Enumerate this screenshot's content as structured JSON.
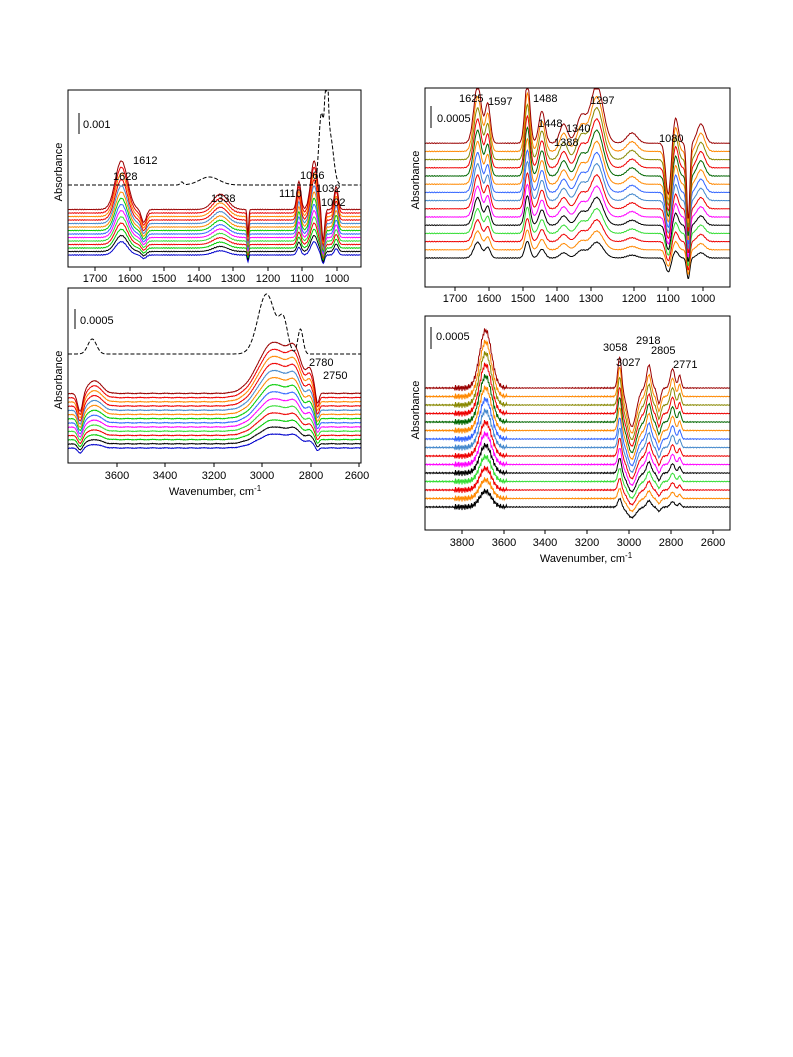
{
  "colors": {
    "black": "#000000",
    "blue": "#0000cc",
    "green": "#00cc00",
    "red": "#ee0000",
    "orange": "#ff8800",
    "magenta": "#ff00ff",
    "royal": "#3366ff",
    "lime": "#33dd33",
    "darkgreen": "#006600",
    "darkred": "#990000",
    "olive": "#888800",
    "steel": "#4488cc"
  },
  "chart_data": [
    {
      "type": "line",
      "panel": "top-left",
      "ylabel": "Absorbance",
      "xlim": [
        1780,
        930
      ],
      "x_reversed": true,
      "ticks": [
        1700,
        1600,
        1500,
        1400,
        1300,
        1200,
        1100,
        1000
      ],
      "tick_labels": [
        "1700",
        "1600",
        "1500",
        "1400",
        "1300",
        "1200",
        "1100",
        "1000"
      ],
      "scale_bar": "0.001",
      "annotations": [
        "1612",
        "1628",
        "1338",
        "1110",
        "1066",
        "1032",
        "1002"
      ],
      "dashed_reference": true,
      "series_count": 14
    },
    {
      "type": "line",
      "panel": "bottom-left",
      "xlabel": "Wavenumber, cm",
      "xlabel_sup": "-1",
      "ylabel": "Absorbance",
      "xlim": [
        3790,
        2580
      ],
      "x_reversed": true,
      "ticks": [
        3600,
        3400,
        3200,
        3000,
        2800,
        2600
      ],
      "tick_labels": [
        "3600",
        "3400",
        "3200",
        "3000",
        "2800",
        "2600"
      ],
      "scale_bar": "0.0005",
      "annotations": [
        "2780",
        "2750"
      ],
      "dashed_reference": true,
      "series_count": 14
    },
    {
      "type": "line",
      "panel": "top-right",
      "ylabel": "Absorbance",
      "xlim": [
        1770,
        930
      ],
      "x_reversed": true,
      "ticks": [
        1700,
        1600,
        1500,
        1400,
        1300,
        1200,
        1100,
        1000
      ],
      "tick_labels": [
        "1700",
        "1600",
        "1500",
        "1400",
        "1300",
        "1200",
        "1100",
        "1000"
      ],
      "scale_bar": "0.0005",
      "annotations": [
        "1625",
        "1597",
        "1488",
        "1448",
        "1340",
        "1388",
        "1297",
        "1080"
      ],
      "dashed_reference": false,
      "series_count": 15
    },
    {
      "type": "line",
      "panel": "bottom-right",
      "xlabel": "Wavenumber, cm",
      "xlabel_sup": "-1",
      "ylabel": "Absorbance",
      "xlim": [
        3990,
        2530
      ],
      "x_reversed": true,
      "ticks": [
        3800,
        3600,
        3400,
        3200,
        3000,
        2800,
        2600
      ],
      "tick_labels": [
        "3800",
        "3600",
        "3400",
        "3200",
        "3000",
        "2800",
        "2600"
      ],
      "scale_bar": "0.0005",
      "annotations": [
        "3058",
        "2918",
        "3027",
        "2805",
        "2771"
      ],
      "dashed_reference": false,
      "series_count": 15
    }
  ]
}
